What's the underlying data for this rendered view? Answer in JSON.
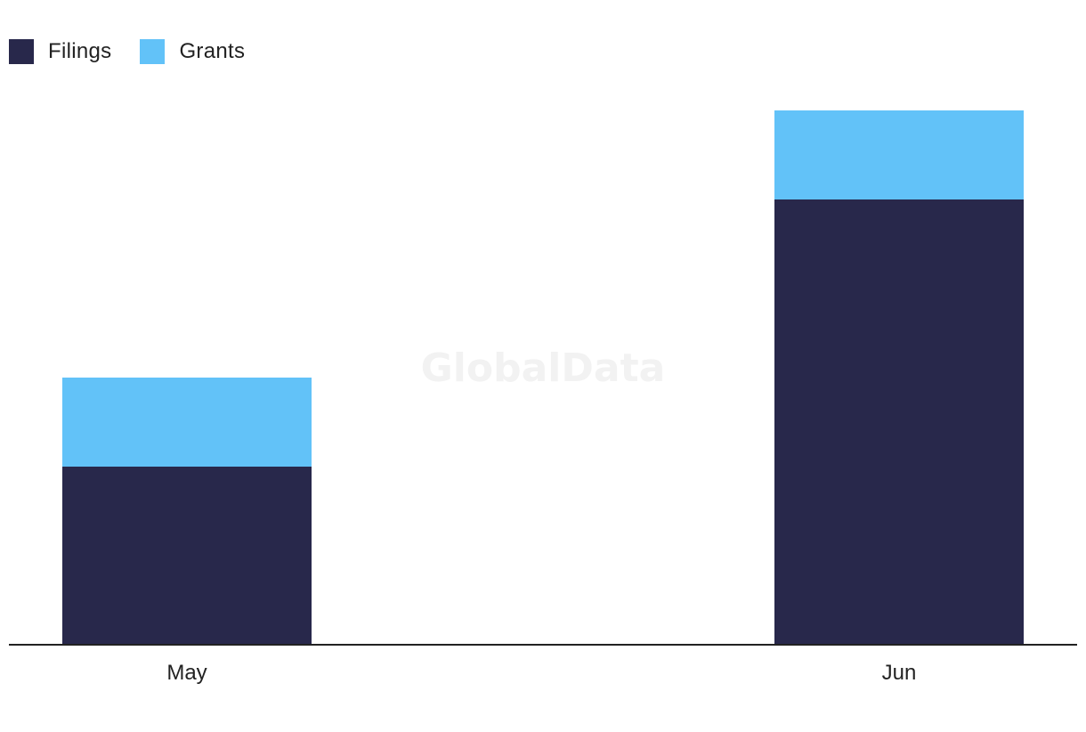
{
  "chart_data": {
    "type": "bar",
    "stacked": true,
    "categories": [
      "May",
      "Jun"
    ],
    "series": [
      {
        "name": "Filings",
        "values": [
          2,
          5
        ]
      },
      {
        "name": "Grants",
        "values": [
          1,
          1
        ]
      }
    ],
    "ylim": [
      0,
      6
    ],
    "title": "",
    "xlabel": "",
    "ylabel": "",
    "legend_position": "top-left",
    "colors": {
      "Filings": "#28284b",
      "Grants": "#62c2f8"
    }
  },
  "watermark": "GlobalData"
}
